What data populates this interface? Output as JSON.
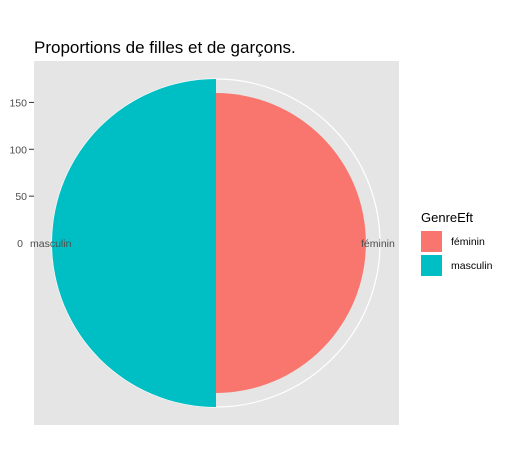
{
  "chart_data": {
    "type": "pie",
    "title": "Proportions de filles et de garçons.",
    "radial_ticks": [
      "0",
      "50",
      "100",
      "150"
    ],
    "radial_ticks_max": 175,
    "categories": [
      "féminin",
      "masculin"
    ],
    "values": [
      160,
      175
    ],
    "colors": [
      "#F8766D",
      "#00BFC4"
    ],
    "legend": {
      "title": "GenreEft",
      "position": "right",
      "entries": [
        "féminin",
        "masculin"
      ]
    },
    "panel_background": "#E5E5E5",
    "grid_color": "#FFFFFF"
  }
}
